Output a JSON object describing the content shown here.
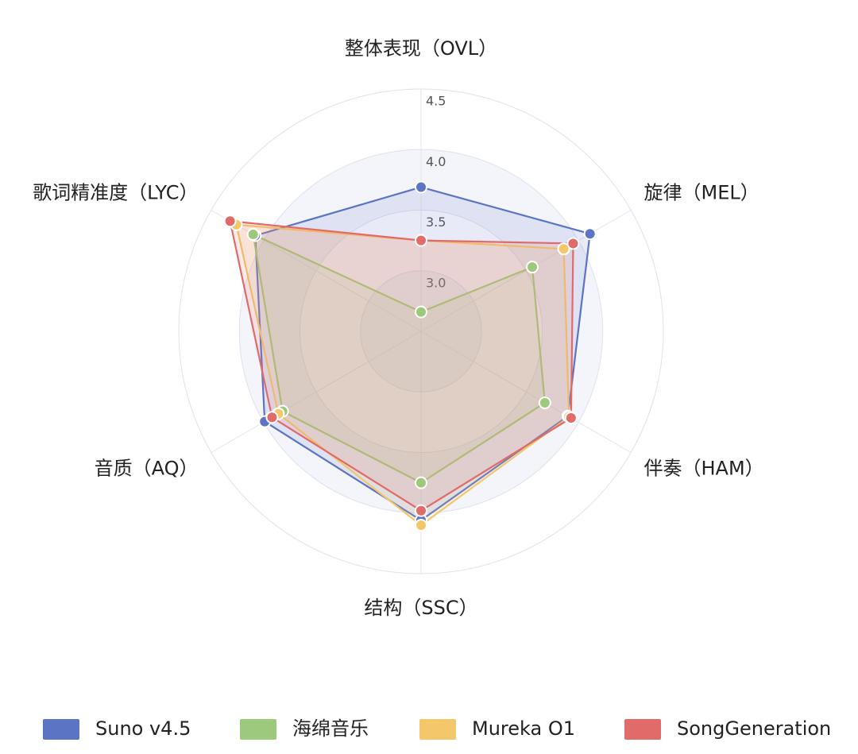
{
  "chart_data": {
    "type": "radar",
    "indicators": [
      "整体表现（OVL）",
      "旋律（MEL）",
      "伴奏（HAM）",
      "结构（SSC）",
      "音质（AQ）",
      "歌词精准度（LYC）"
    ],
    "rlim": [
      2.5,
      4.5
    ],
    "rticks": [
      {
        "value": 3.0,
        "label": "3.0"
      },
      {
        "value": 3.5,
        "label": "3.5"
      },
      {
        "value": 4.0,
        "label": "4.0"
      },
      {
        "value": 4.5,
        "label": "4.5"
      }
    ],
    "series": [
      {
        "name": "Suno v4.5",
        "color": "#5b74c4",
        "values": [
          3.69,
          4.11,
          3.9,
          4.06,
          3.99,
          4.08
        ]
      },
      {
        "name": "海绵音乐",
        "color": "#9dc97c",
        "values": [
          2.66,
          3.56,
          3.68,
          3.75,
          3.82,
          4.1
        ]
      },
      {
        "name": "Mureka O1",
        "color": "#f3c76a",
        "values": [
          3.25,
          3.86,
          3.91,
          4.1,
          3.86,
          4.26
        ]
      },
      {
        "name": "SongGeneration",
        "color": "#e06b69",
        "values": [
          3.25,
          3.95,
          3.93,
          3.98,
          3.92,
          4.32
        ]
      }
    ],
    "legend": "bottom"
  }
}
